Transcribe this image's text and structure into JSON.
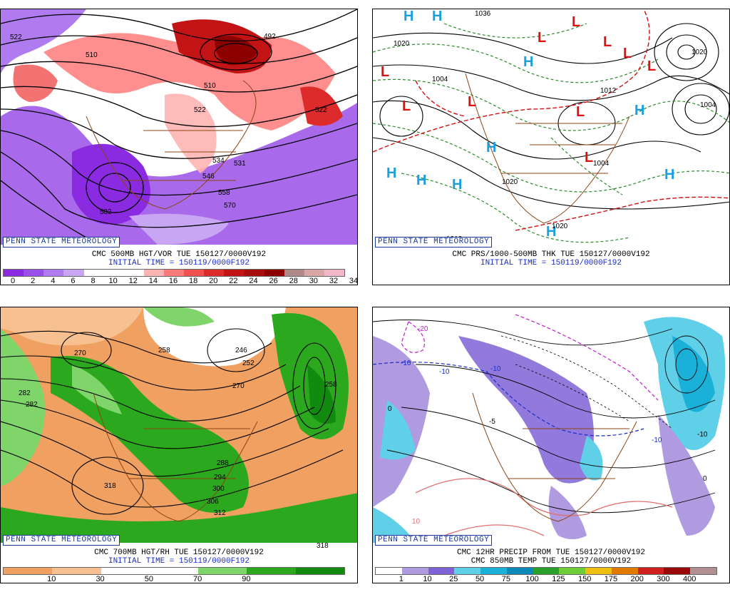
{
  "colors": {
    "vort": [
      "#8a2be2",
      "#9a4fe8",
      "#b07bee",
      "#c9a6f3",
      "#ffffff",
      "#ffffff",
      "#ffffff",
      "#ffb3b3",
      "#ff7b7b",
      "#f05050",
      "#dd2a2a",
      "#c21414",
      "#a80c0c",
      "#8c0000",
      "#b08a8a",
      "#d9a6a6",
      "#f3b8c8"
    ],
    "rh": [
      "#f0a060",
      "#f6c090",
      "#ffffff",
      "#ffffff",
      "#7fd46a",
      "#2ca81e",
      "#128a10"
    ],
    "precip": [
      "#ffffff",
      "#b09ae0",
      "#7f62d6",
      "#5fd0e8",
      "#1ab0d8",
      "#0a8ab8",
      "#2aa02a",
      "#6fcd3a",
      "#f0c010",
      "#e07a00",
      "#d02020",
      "#9a0a0a",
      "#b09090"
    ]
  },
  "panel1": {
    "badge": "PENN STATE METEOROLOGY",
    "title": "CMC 500MB HGT/VOR TUE 150127/0000V192",
    "init": "INITIAL TIME = 150119/0000F192",
    "scale": [
      "0",
      "2",
      "4",
      "6",
      "8",
      "10",
      "12",
      "14",
      "16",
      "18",
      "20",
      "22",
      "24",
      "26",
      "28",
      "30",
      "32",
      "34"
    ],
    "contours": [
      "522",
      "510",
      "492",
      "510",
      "522",
      "522",
      "534",
      "546",
      "558",
      "570",
      "582",
      "531"
    ]
  },
  "panel2": {
    "badge": "PENN STATE METEOROLOGY",
    "title": "CMC PRS/1000-500MB THK TUE 150127/0000V192",
    "init": "INITIAL TIME = 150119/0000F192",
    "lows": [
      "L",
      "L",
      "L",
      "L",
      "L",
      "L",
      "L",
      "L",
      "L",
      "L"
    ],
    "highs": [
      "H",
      "H",
      "H",
      "H",
      "H",
      "H",
      "H",
      "H",
      "H",
      "H"
    ],
    "isobars": [
      "1036",
      "1020",
      "1004",
      "1012",
      "1004",
      "1020",
      "1012",
      "1020",
      "1004",
      "1020"
    ]
  },
  "panel3": {
    "badge": "PENN STATE METEOROLOGY",
    "title": "CMC 700MB HGT/RH TUE 150127/0000V192",
    "init": "INITIAL TIME = 150119/0000F192",
    "scale": [
      "10",
      "30",
      "50",
      "70",
      "90"
    ],
    "contours": [
      "270",
      "258",
      "246",
      "252",
      "270",
      "282",
      "282",
      "318",
      "288",
      "294",
      "300",
      "306",
      "312",
      "318",
      "258"
    ]
  },
  "panel4": {
    "badge": "PENN STATE METEOROLOGY",
    "title": "CMC 12HR PRECIP FROM TUE 150127/0000V192",
    "title2": "CMC 850MB TEMP TUE 150127/0000V192",
    "scale": [
      "1",
      "10",
      "25",
      "50",
      "75",
      "100",
      "125",
      "150",
      "175",
      "200",
      "300",
      "400"
    ],
    "labels": [
      "-20",
      "-10",
      "-10",
      "-10",
      "-10",
      "0",
      "10",
      "-5",
      "-10",
      "0"
    ]
  }
}
